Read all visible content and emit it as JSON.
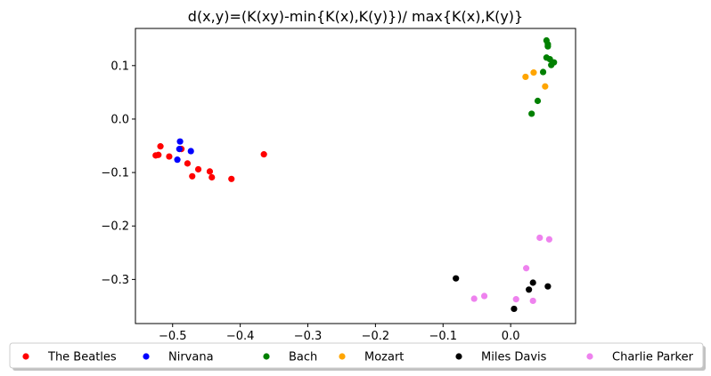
{
  "chart_data": {
    "type": "scatter",
    "title": "d(x,y)=(K(xy)-min{K(x),K(y)})/ max{K(x),K(y)}",
    "xlabel": "",
    "ylabel": "",
    "xlim": [
      -0.555,
      0.096
    ],
    "ylim": [
      -0.3825,
      0.1695
    ],
    "xticks": [
      -0.5,
      -0.4,
      -0.3,
      -0.2,
      -0.1,
      0.0
    ],
    "xtick_labels": [
      "−0.5",
      "−0.4",
      "−0.3",
      "−0.2",
      "−0.1",
      "0.0"
    ],
    "yticks": [
      -0.3,
      -0.2,
      -0.1,
      0.0,
      0.1
    ],
    "ytick_labels": [
      "−0.3",
      "−0.2",
      "−0.1",
      "0.0",
      "0.1"
    ],
    "grid": false,
    "legend_position": "bottom",
    "series": [
      {
        "name": "The Beatles",
        "color": "#ff0000",
        "points": [
          [
            -0.525,
            -0.068
          ],
          [
            -0.521,
            -0.067
          ],
          [
            -0.518,
            -0.051
          ],
          [
            -0.505,
            -0.07
          ],
          [
            -0.487,
            -0.056
          ],
          [
            -0.478,
            -0.083
          ],
          [
            -0.471,
            -0.107
          ],
          [
            -0.462,
            -0.094
          ],
          [
            -0.445,
            -0.098
          ],
          [
            -0.442,
            -0.109
          ],
          [
            -0.413,
            -0.112
          ],
          [
            -0.365,
            -0.066
          ]
        ]
      },
      {
        "name": "Nirvana",
        "color": "#0000ff",
        "points": [
          [
            -0.489,
            -0.042
          ],
          [
            -0.49,
            -0.056
          ],
          [
            -0.473,
            -0.06
          ],
          [
            -0.493,
            -0.076
          ]
        ]
      },
      {
        "name": "Bach",
        "color": "#008000",
        "points": [
          [
            0.053,
            0.147
          ],
          [
            0.055,
            0.14
          ],
          [
            0.055,
            0.136
          ],
          [
            0.053,
            0.115
          ],
          [
            0.058,
            0.112
          ],
          [
            0.064,
            0.106
          ],
          [
            0.06,
            0.101
          ],
          [
            0.048,
            0.088
          ],
          [
            0.04,
            0.034
          ],
          [
            0.031,
            0.01
          ]
        ]
      },
      {
        "name": "Mozart",
        "color": "#ffa500",
        "points": [
          [
            0.022,
            0.079
          ],
          [
            0.034,
            0.087
          ],
          [
            0.051,
            0.061
          ]
        ]
      },
      {
        "name": "Miles Davis",
        "color": "#000000",
        "points": [
          [
            -0.081,
            -0.298
          ],
          [
            0.033,
            -0.306
          ],
          [
            0.027,
            -0.319
          ],
          [
            0.055,
            -0.313
          ],
          [
            0.005,
            -0.355
          ]
        ]
      },
      {
        "name": "Charlie Parker",
        "color": "#ee82ee",
        "points": [
          [
            0.043,
            -0.222
          ],
          [
            0.057,
            -0.225
          ],
          [
            0.023,
            -0.279
          ],
          [
            -0.039,
            -0.331
          ],
          [
            -0.054,
            -0.336
          ],
          [
            0.008,
            -0.337
          ],
          [
            0.033,
            -0.34
          ]
        ]
      }
    ]
  }
}
